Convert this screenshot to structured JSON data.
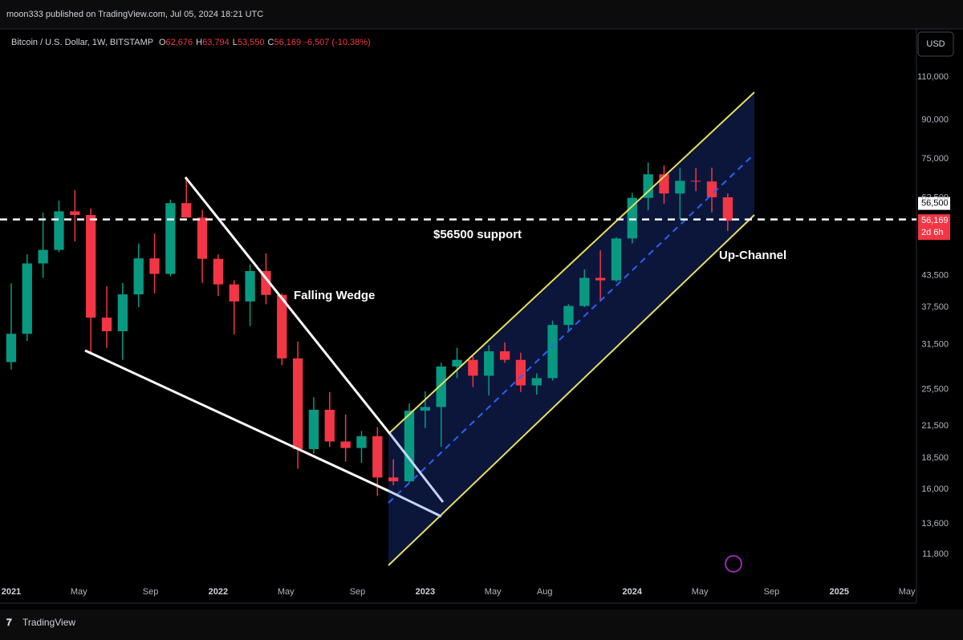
{
  "header": {
    "publisher": "moon333 published on TradingView.com, Jul 05, 2024 18:21 UTC"
  },
  "chart_data": {
    "type": "candlestick",
    "symbol": "Bitcoin / U.S. Dollar, 1W, BITSTAMP",
    "ohlc_legend": [
      {
        "key": "O",
        "value": "62,676"
      },
      {
        "key": "H",
        "value": "63,794"
      },
      {
        "key": "L",
        "value": "53,550"
      },
      {
        "key": "C",
        "value": "56,169"
      }
    ],
    "change": "-6,507 (-10.38%)",
    "currency": "USD",
    "x": [
      0,
      4,
      8,
      12,
      16,
      20,
      24,
      28,
      32,
      36,
      40,
      44,
      48,
      52,
      56,
      60,
      64,
      68,
      72,
      76,
      80,
      84,
      88,
      92,
      96,
      100,
      104,
      108,
      112,
      116,
      120,
      124,
      128,
      132,
      136,
      140,
      144,
      148,
      152,
      156,
      160,
      164,
      168,
      172,
      176,
      180
    ],
    "open": [
      29000,
      33100,
      46000,
      49000,
      58700,
      57700,
      35700,
      33500,
      39800,
      47100,
      43800,
      61000,
      57000,
      47000,
      41700,
      38500,
      44400,
      39700,
      29500,
      19300,
      23200,
      20000,
      19400,
      20500,
      16900,
      16600,
      23100,
      23500,
      28400,
      29300,
      27200,
      30500,
      29300,
      26000,
      26900,
      34500,
      37700,
      43000,
      42500,
      51700,
      62500,
      69800,
      63800,
      67700,
      67500,
      62676
    ],
    "high": [
      41900,
      48000,
      58300,
      61700,
      64800,
      59500,
      41300,
      42000,
      50500,
      52900,
      62000,
      69000,
      59100,
      48000,
      42500,
      45800,
      48200,
      40000,
      31900,
      24600,
      25200,
      22700,
      21000,
      21400,
      18400,
      23900,
      25300,
      28900,
      31000,
      29800,
      31400,
      31800,
      30300,
      27500,
      35200,
      38000,
      44700,
      48900,
      52000,
      64000,
      73800,
      72700,
      71900,
      71900,
      72000,
      63794
    ],
    "low": [
      28000,
      32000,
      43000,
      48500,
      51000,
      30000,
      31000,
      29300,
      37500,
      40000,
      43300,
      58000,
      42000,
      39500,
      33000,
      34300,
      38000,
      28600,
      17600,
      18900,
      19500,
      18200,
      18100,
      15500,
      16300,
      16500,
      21300,
      19500,
      26900,
      25800,
      24800,
      28900,
      25200,
      24900,
      26600,
      33400,
      37500,
      38500,
      42200,
      50500,
      59000,
      60800,
      56500,
      64500,
      58400,
      53550
    ],
    "close": [
      33100,
      46000,
      49000,
      58700,
      57700,
      35700,
      33500,
      39800,
      47100,
      43800,
      61000,
      57000,
      47000,
      41700,
      38500,
      44400,
      39700,
      29500,
      19300,
      23200,
      20000,
      19400,
      20500,
      16900,
      16600,
      23100,
      23500,
      28400,
      29300,
      27200,
      30500,
      29300,
      26000,
      26900,
      34500,
      37700,
      43000,
      42500,
      51700,
      62500,
      69800,
      63800,
      67700,
      67500,
      62676,
      56169
    ],
    "up_color": "#089981",
    "down_color": "#f23645",
    "log_scale": true,
    "grid": false,
    "xlim": [
      -1.2,
      227
    ],
    "xticks": [
      {
        "value": 0,
        "label": "2021"
      },
      {
        "value": 17,
        "label": "May"
      },
      {
        "value": 35,
        "label": "Sep"
      },
      {
        "value": 52,
        "label": "2022"
      },
      {
        "value": 69,
        "label": "May"
      },
      {
        "value": 87,
        "label": "Sep"
      },
      {
        "value": 104,
        "label": "2023"
      },
      {
        "value": 121,
        "label": "May"
      },
      {
        "value": 134,
        "label": "Aug"
      },
      {
        "value": 156,
        "label": "2024"
      },
      {
        "value": 173,
        "label": "May"
      },
      {
        "value": 191,
        "label": "Sep"
      },
      {
        "value": 208,
        "label": "2025"
      },
      {
        "value": 225,
        "label": "May"
      }
    ],
    "ylim": [
      9390,
      137800
    ],
    "yticks": [
      {
        "value": 110000,
        "label": "110,000"
      },
      {
        "value": 90000,
        "label": "90,000"
      },
      {
        "value": 75000,
        "label": "75,000"
      },
      {
        "value": 62500,
        "label": "62,500"
      },
      {
        "value": 43500,
        "label": "43,500"
      },
      {
        "value": 37500,
        "label": "37,500"
      },
      {
        "value": 31500,
        "label": "31,500"
      },
      {
        "value": 25500,
        "label": "25,500"
      },
      {
        "value": 21500,
        "label": "21,500"
      },
      {
        "value": 18500,
        "label": "18,500"
      },
      {
        "value": 16000,
        "label": "16,000"
      },
      {
        "value": 13600,
        "label": "13,600"
      },
      {
        "value": 11800,
        "label": "11,800"
      }
    ],
    "support": {
      "value": 56500,
      "label": "56,500"
    },
    "last_price": {
      "value": 56169,
      "label": "56,169"
    },
    "countdown": "2d 6h",
    "annotations": [
      "$56500 support",
      "Falling Wedge",
      "Up-Channel"
    ]
  },
  "footer": {
    "brand": "TradingView"
  }
}
